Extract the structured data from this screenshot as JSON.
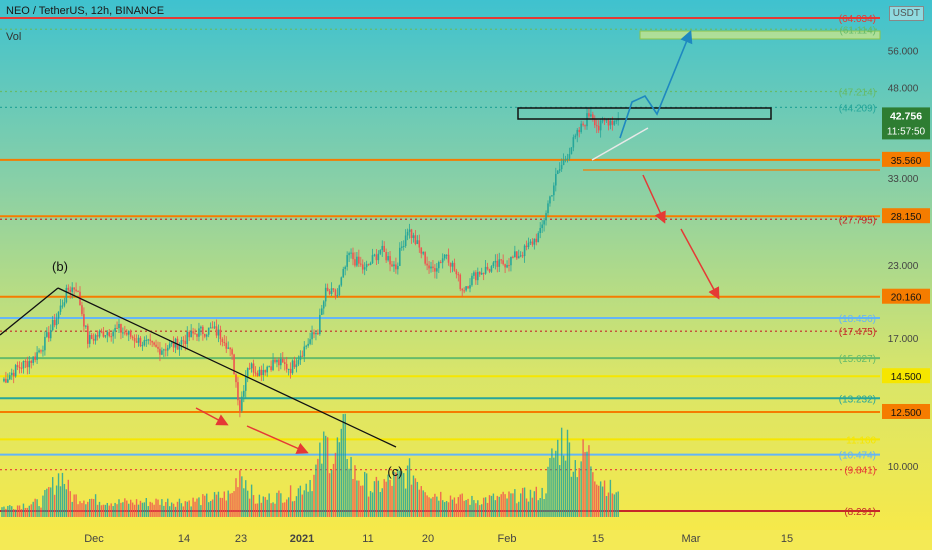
{
  "header": {
    "symbol": "NEO / TetherUS, 12h, BINANCE",
    "volume_label": "Vol",
    "currency_badge": "USDT"
  },
  "colors": {
    "up": "#26a69a",
    "down": "#ef5350",
    "red_line": "#e53935",
    "orange": "#f57c00",
    "green": "#66bb6a",
    "yellow": "#f6e600",
    "teal": "#26a69a",
    "blue": "#64b5f6",
    "brown": "#c62828",
    "bg_top": "#3fc2cf",
    "bg_bottom": "#f6e94a"
  },
  "chart_data": {
    "type": "candlestick",
    "xlabel": "",
    "ylabel": "",
    "y_scale": "log",
    "x_ticks": [
      "Dec",
      "14",
      "23",
      "2021",
      "11",
      "20",
      "Feb",
      "15",
      "Mar",
      "15"
    ],
    "y_ticks": [
      "56.000",
      "48.000",
      "33.000",
      "23.000",
      "17.000",
      "10.000"
    ],
    "last_price": {
      "value": "42.756",
      "countdown": "11:57:50"
    },
    "levels": [
      {
        "price": 64.034,
        "label": "(64.034)",
        "style": "solid",
        "color_key": "red_line",
        "boxed": false
      },
      {
        "price": 61.114,
        "label": "(61.114)",
        "style": "dotted",
        "color_key": "green",
        "boxed": false
      },
      {
        "price": 47.214,
        "label": "(47.214)",
        "style": "dotted",
        "color_key": "green",
        "boxed": false
      },
      {
        "price": 44.209,
        "label": "(44.209)",
        "style": "dotted",
        "color_key": "teal",
        "boxed": false
      },
      {
        "price": 35.56,
        "label": "35.560",
        "style": "solid",
        "color_key": "orange",
        "boxed": true
      },
      {
        "price": 27.795,
        "label": "(27.795)",
        "style": "dotted",
        "color_key": "brown",
        "boxed": false
      },
      {
        "price": 28.15,
        "label": "28.150",
        "style": "solid",
        "color_key": "orange",
        "boxed": true
      },
      {
        "price": 20.16,
        "label": "20.160",
        "style": "solid",
        "color_key": "orange",
        "boxed": true
      },
      {
        "price": 18.456,
        "label": "(18.456)",
        "style": "solid",
        "color_key": "blue",
        "boxed": false
      },
      {
        "price": 17.475,
        "label": "(17.475)",
        "style": "dotted",
        "color_key": "brown",
        "boxed": false
      },
      {
        "price": 15.627,
        "label": "(15.627)",
        "style": "solid",
        "color_key": "green",
        "boxed": false
      },
      {
        "price": 14.5,
        "label": "14.500",
        "style": "solid",
        "color_key": "yellow",
        "boxed": true
      },
      {
        "price": 13.232,
        "label": "(13.232)",
        "style": "solid",
        "color_key": "teal",
        "boxed": false
      },
      {
        "price": 12.5,
        "label": "12.500",
        "style": "solid",
        "color_key": "orange",
        "boxed": true
      },
      {
        "price": 11.16,
        "label": "11.160",
        "style": "solid",
        "color_key": "yellow",
        "boxed": false
      },
      {
        "price": 10.474,
        "label": "(10.474)",
        "style": "solid",
        "color_key": "blue",
        "boxed": false
      },
      {
        "price": 9.841,
        "label": "(9.841)",
        "style": "dotted",
        "color_key": "red_line",
        "boxed": false
      },
      {
        "price": 8.291,
        "label": "(8.291)",
        "style": "solid",
        "color_key": "brown",
        "boxed": false
      }
    ],
    "wave_labels": [
      "(b)",
      "(c)"
    ],
    "price_waypoints": [
      [
        0,
        14.2
      ],
      [
        8,
        15.0
      ],
      [
        16,
        15.6
      ],
      [
        22,
        16.7
      ],
      [
        28,
        18.5
      ],
      [
        34,
        20.8
      ],
      [
        38,
        21.0
      ],
      [
        44,
        16.8
      ],
      [
        52,
        17.4
      ],
      [
        60,
        17.6
      ],
      [
        70,
        16.8
      ],
      [
        80,
        16.2
      ],
      [
        90,
        16.6
      ],
      [
        100,
        17.4
      ],
      [
        108,
        17.6
      ],
      [
        114,
        17.0
      ],
      [
        118,
        15.6
      ],
      [
        122,
        12.7
      ],
      [
        126,
        15.2
      ],
      [
        132,
        14.8
      ],
      [
        140,
        15.4
      ],
      [
        148,
        15.0
      ],
      [
        156,
        16.5
      ],
      [
        162,
        17.6
      ],
      [
        166,
        20.5
      ],
      [
        172,
        20.3
      ],
      [
        178,
        24.0
      ],
      [
        186,
        22.5
      ],
      [
        194,
        24.5
      ],
      [
        202,
        22.8
      ],
      [
        208,
        26.8
      ],
      [
        214,
        24.6
      ],
      [
        220,
        22.4
      ],
      [
        228,
        24.2
      ],
      [
        236,
        20.8
      ],
      [
        244,
        22.3
      ],
      [
        252,
        22.8
      ],
      [
        260,
        23.4
      ],
      [
        268,
        24.4
      ],
      [
        276,
        26.2
      ],
      [
        284,
        33.0
      ],
      [
        290,
        36.5
      ],
      [
        296,
        40.0
      ],
      [
        302,
        43.5
      ],
      [
        306,
        40.5
      ],
      [
        310,
        42.0
      ],
      [
        314,
        41.8
      ],
      [
        316,
        42.756
      ]
    ],
    "volume_waypoints": [
      [
        0,
        0.12
      ],
      [
        20,
        0.18
      ],
      [
        28,
        0.45
      ],
      [
        30,
        0.55
      ],
      [
        36,
        0.25
      ],
      [
        60,
        0.18
      ],
      [
        100,
        0.2
      ],
      [
        118,
        0.28
      ],
      [
        122,
        0.6
      ],
      [
        130,
        0.2
      ],
      [
        150,
        0.3
      ],
      [
        160,
        0.5
      ],
      [
        166,
        0.9
      ],
      [
        170,
        0.75
      ],
      [
        176,
        1.0
      ],
      [
        180,
        0.55
      ],
      [
        190,
        0.35
      ],
      [
        200,
        0.45
      ],
      [
        210,
        0.55
      ],
      [
        220,
        0.3
      ],
      [
        240,
        0.2
      ],
      [
        260,
        0.25
      ],
      [
        278,
        0.3
      ],
      [
        282,
        0.7
      ],
      [
        288,
        1.0
      ],
      [
        294,
        0.65
      ],
      [
        300,
        0.8
      ],
      [
        306,
        0.5
      ],
      [
        316,
        0.25
      ]
    ],
    "volume_max": 1.0
  }
}
